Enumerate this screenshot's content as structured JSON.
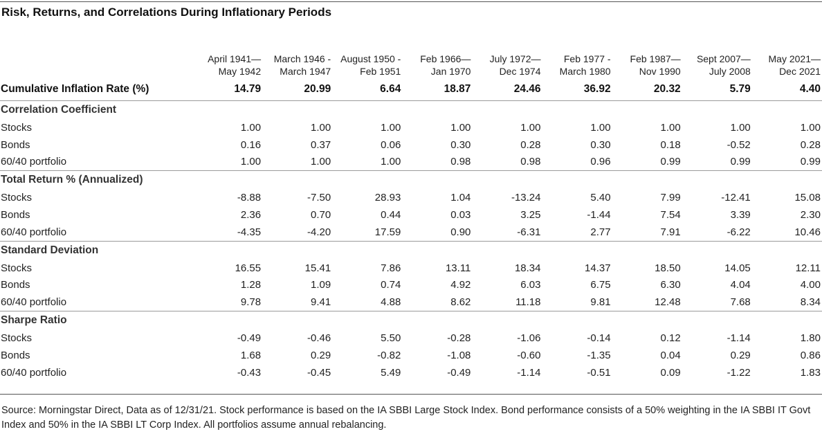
{
  "title": "Risk, Returns, and Correlations During Inflationary Periods",
  "periods": [
    {
      "line1": "April 1941—",
      "line2": "May 1942"
    },
    {
      "line1": "March 1946 -",
      "line2": "March 1947"
    },
    {
      "line1": "August 1950 -",
      "line2": "Feb 1951"
    },
    {
      "line1": "Feb 1966—",
      "line2": "Jan 1970"
    },
    {
      "line1": "July 1972—",
      "line2": "Dec 1974"
    },
    {
      "line1": "Feb 1977 -",
      "line2": "March 1980"
    },
    {
      "line1": "Feb 1987—",
      "line2": "Nov 1990"
    },
    {
      "line1": "Sept 2007—",
      "line2": "July 2008"
    },
    {
      "line1": "May 2021—",
      "line2": "Dec 2021"
    }
  ],
  "inflation": {
    "label": "Cumulative Inflation Rate (%)",
    "values": [
      "14.79",
      "20.99",
      "6.64",
      "18.87",
      "24.46",
      "36.92",
      "20.32",
      "5.79",
      "4.40"
    ]
  },
  "sections": [
    {
      "title": "Correlation Coefficient",
      "rows": [
        {
          "label": "Stocks",
          "values": [
            "1.00",
            "1.00",
            "1.00",
            "1.00",
            "1.00",
            "1.00",
            "1.00",
            "1.00",
            "1.00"
          ]
        },
        {
          "label": "Bonds",
          "values": [
            "0.16",
            "0.37",
            "0.06",
            "0.30",
            "0.28",
            "0.30",
            "0.18",
            "-0.52",
            "0.28"
          ]
        },
        {
          "label": "60/40 portfolio",
          "values": [
            "1.00",
            "1.00",
            "1.00",
            "0.98",
            "0.98",
            "0.96",
            "0.99",
            "0.99",
            "0.99"
          ]
        }
      ]
    },
    {
      "title": "Total Return % (Annualized)",
      "rows": [
        {
          "label": "Stocks",
          "values": [
            "-8.88",
            "-7.50",
            "28.93",
            "1.04",
            "-13.24",
            "5.40",
            "7.99",
            "-12.41",
            "15.08"
          ]
        },
        {
          "label": "Bonds",
          "values": [
            "2.36",
            "0.70",
            "0.44",
            "0.03",
            "3.25",
            "-1.44",
            "7.54",
            "3.39",
            "2.30"
          ]
        },
        {
          "label": "60/40 portfolio",
          "values": [
            "-4.35",
            "-4.20",
            "17.59",
            "0.90",
            "-6.31",
            "2.77",
            "7.91",
            "-6.22",
            "10.46"
          ]
        }
      ]
    },
    {
      "title": "Standard Deviation",
      "rows": [
        {
          "label": "Stocks",
          "values": [
            "16.55",
            "15.41",
            "7.86",
            "13.11",
            "18.34",
            "14.37",
            "18.50",
            "14.05",
            "12.11"
          ]
        },
        {
          "label": "Bonds",
          "values": [
            "1.28",
            "1.09",
            "0.74",
            "4.92",
            "6.03",
            "6.75",
            "6.30",
            "4.04",
            "4.00"
          ]
        },
        {
          "label": "60/40 portfolio",
          "values": [
            "9.78",
            "9.41",
            "4.88",
            "8.62",
            "11.18",
            "9.81",
            "12.48",
            "7.68",
            "8.34"
          ]
        }
      ]
    },
    {
      "title": "Sharpe Ratio",
      "rows": [
        {
          "label": "Stocks",
          "values": [
            "-0.49",
            "-0.46",
            "5.50",
            "-0.28",
            "-1.06",
            "-0.14",
            "0.12",
            "-1.14",
            "1.80"
          ]
        },
        {
          "label": "Bonds",
          "values": [
            "1.68",
            "0.29",
            "-0.82",
            "-1.08",
            "-0.60",
            "-1.35",
            "0.04",
            "0.29",
            "0.86"
          ]
        },
        {
          "label": "60/40 portfolio",
          "values": [
            "-0.43",
            "-0.45",
            "5.49",
            "-0.49",
            "-1.14",
            "-0.51",
            "0.09",
            "-1.22",
            "1.83"
          ]
        }
      ]
    }
  ],
  "source": "Source: Morningstar Direct, Data as of 12/31/21. Stock performance is based on the IA SBBI Large Stock Index. Bond performance consists of a 50% weighting in the IA SBBI IT Govt Index and 50% in the IA SBBI LT Corp Index. All portfolios assume annual rebalancing."
}
